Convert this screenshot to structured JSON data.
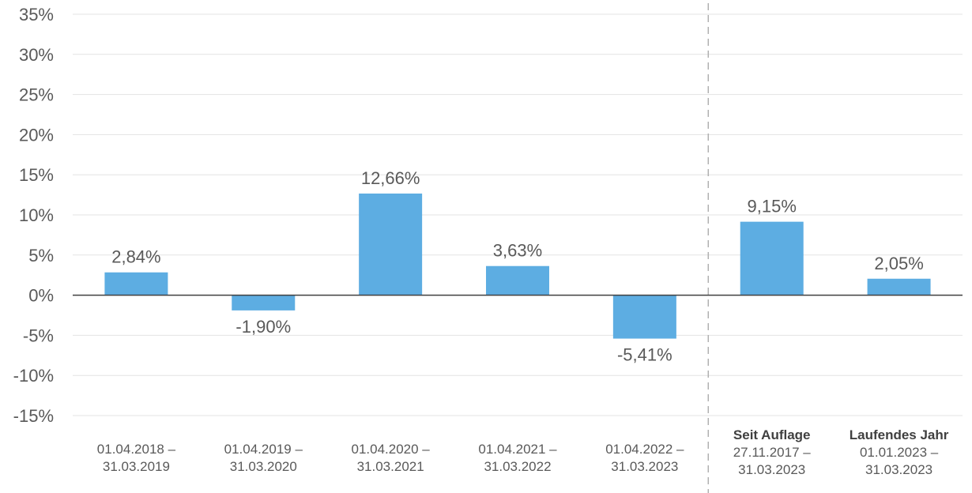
{
  "chart_data": {
    "type": "bar",
    "categories": [
      [
        "01.04.2018 –",
        "31.03.2019"
      ],
      [
        "01.04.2019 –",
        "31.03.2020"
      ],
      [
        "01.04.2020 –",
        "31.03.2021"
      ],
      [
        "01.04.2021 –",
        "31.03.2022"
      ],
      [
        "01.04.2022 –",
        "31.03.2023"
      ],
      [
        "Seit Auflage",
        "27.11.2017 –",
        "31.03.2023"
      ],
      [
        "Laufendes Jahr",
        "01.01.2023 –",
        "31.03.2023"
      ]
    ],
    "category_bold_first_line": [
      false,
      false,
      false,
      false,
      false,
      true,
      true
    ],
    "values": [
      2.84,
      -1.9,
      12.66,
      3.63,
      -5.41,
      9.15,
      2.05
    ],
    "value_labels": [
      "2,84%",
      "-1,90%",
      "12,66%",
      "3,63%",
      "-5,41%",
      "9,15%",
      "2,05%"
    ],
    "y_ticks": [
      35,
      30,
      25,
      20,
      15,
      10,
      5,
      0,
      -5,
      -10,
      -15
    ],
    "y_tick_labels": [
      "35%",
      "30%",
      "25%",
      "20%",
      "15%",
      "10%",
      "5%",
      "0%",
      "-5%",
      "-10%",
      "-15%"
    ],
    "ylim": [
      -15,
      35
    ],
    "grid": true,
    "separator_after_category": 4,
    "bar_color": "#5dade2",
    "grid_color": "#e3e3e3",
    "axis_color": "#404040",
    "separator_color": "#b0b0b0",
    "title": "",
    "xlabel": "",
    "ylabel": ""
  }
}
